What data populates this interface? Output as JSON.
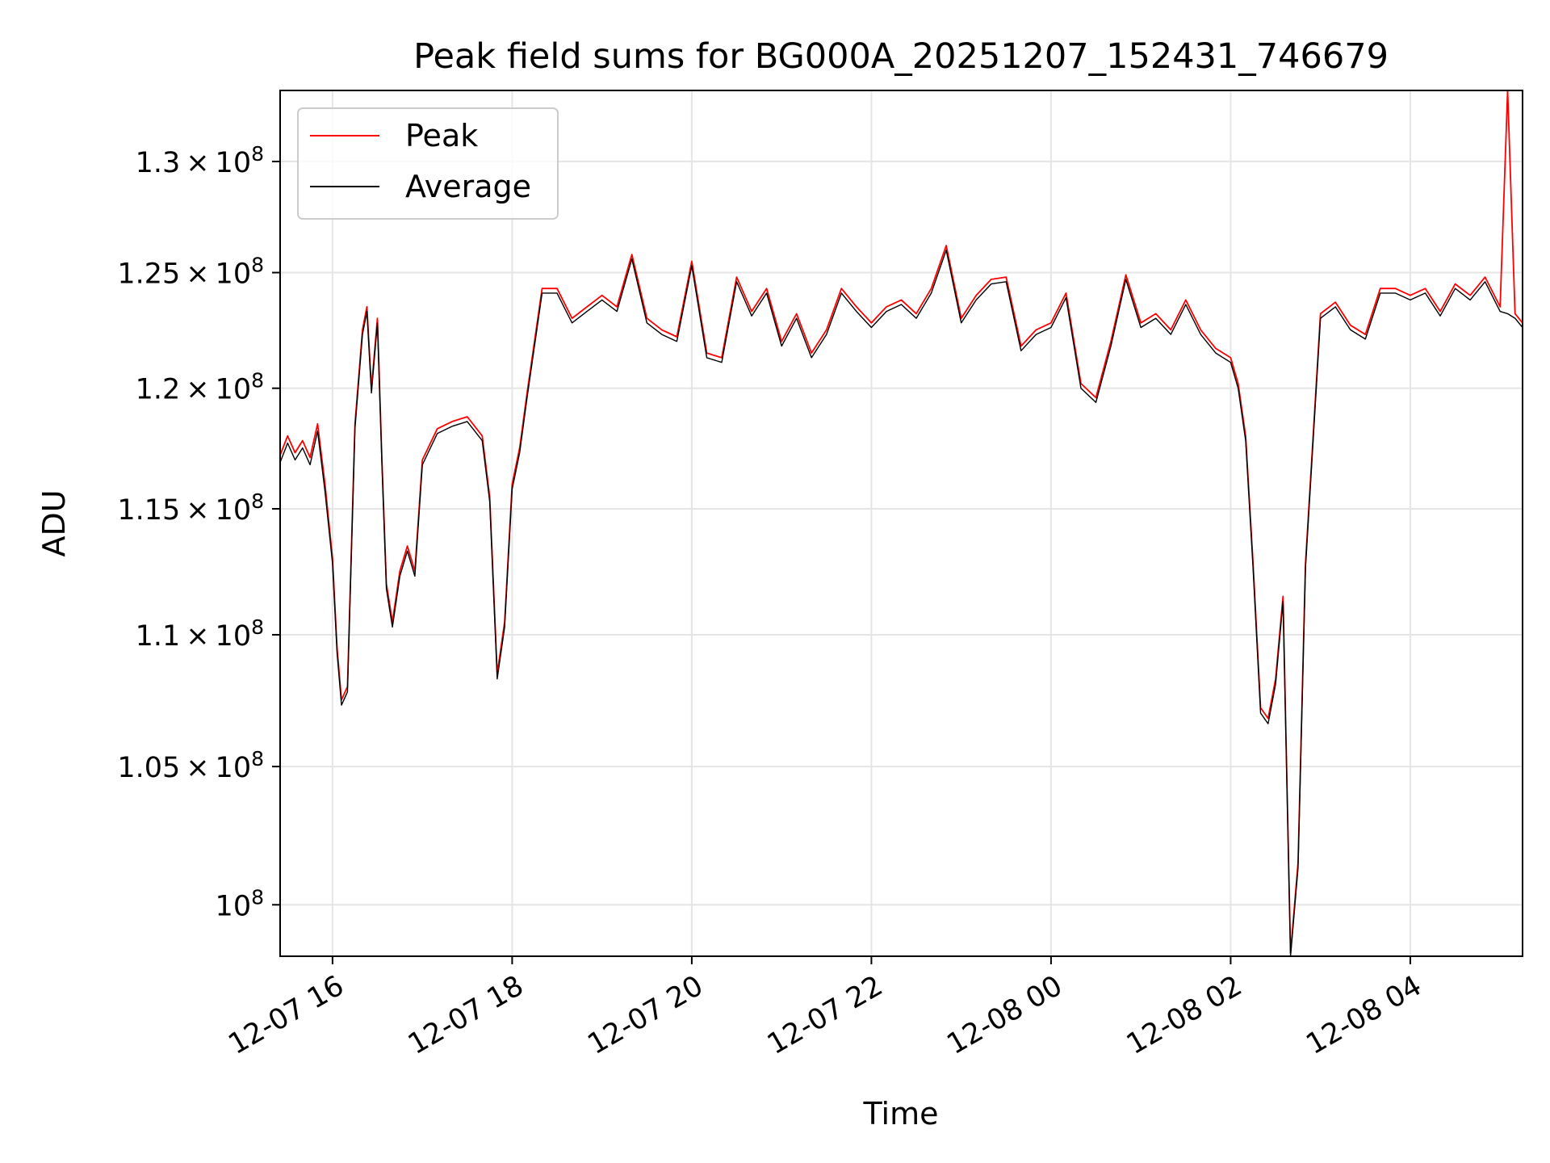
{
  "chart_data": {
    "type": "line",
    "title": "Peak field sums for BG000A_20251207_152431_746679",
    "xlabel": "Time",
    "ylabel": "ADU",
    "y_scale": "log",
    "grid": true,
    "legend_position": "upper-left",
    "xlim": [
      "2025-12-07 15:25",
      "2025-12-08 05:15"
    ],
    "ylim": [
      98200000,
      133300000
    ],
    "x_ticks": [
      {
        "value": "2025-12-07 16:00",
        "label": "12-07 16"
      },
      {
        "value": "2025-12-07 18:00",
        "label": "12-07 18"
      },
      {
        "value": "2025-12-07 20:00",
        "label": "12-07 20"
      },
      {
        "value": "2025-12-07 22:00",
        "label": "12-07 22"
      },
      {
        "value": "2025-12-08 00:00",
        "label": "12-08 00"
      },
      {
        "value": "2025-12-08 02:00",
        "label": "12-08 02"
      },
      {
        "value": "2025-12-08 04:00",
        "label": "12-08 04"
      }
    ],
    "y_ticks": [
      {
        "value": 100000000,
        "mantissa": "",
        "exp": "8"
      },
      {
        "value": 105000000,
        "mantissa": "1.05",
        "exp": "8"
      },
      {
        "value": 110000000,
        "mantissa": "1.1",
        "exp": "8"
      },
      {
        "value": 115000000,
        "mantissa": "1.15",
        "exp": "8"
      },
      {
        "value": 120000000,
        "mantissa": "1.2",
        "exp": "8"
      },
      {
        "value": 125000000,
        "mantissa": "1.25",
        "exp": "8"
      },
      {
        "value": 130000000,
        "mantissa": "1.3",
        "exp": "8"
      }
    ],
    "x": [
      "2025-12-07 15:25",
      "2025-12-07 15:30",
      "2025-12-07 15:35",
      "2025-12-07 15:40",
      "2025-12-07 15:45",
      "2025-12-07 15:50",
      "2025-12-07 15:55",
      "2025-12-07 16:00",
      "2025-12-07 16:03",
      "2025-12-07 16:06",
      "2025-12-07 16:10",
      "2025-12-07 16:15",
      "2025-12-07 16:20",
      "2025-12-07 16:23",
      "2025-12-07 16:26",
      "2025-12-07 16:30",
      "2025-12-07 16:33",
      "2025-12-07 16:36",
      "2025-12-07 16:40",
      "2025-12-07 16:45",
      "2025-12-07 16:50",
      "2025-12-07 16:55",
      "2025-12-07 17:00",
      "2025-12-07 17:10",
      "2025-12-07 17:20",
      "2025-12-07 17:30",
      "2025-12-07 17:40",
      "2025-12-07 17:45",
      "2025-12-07 17:50",
      "2025-12-07 17:55",
      "2025-12-07 18:00",
      "2025-12-07 18:05",
      "2025-12-07 18:10",
      "2025-12-07 18:20",
      "2025-12-07 18:30",
      "2025-12-07 18:40",
      "2025-12-07 18:50",
      "2025-12-07 19:00",
      "2025-12-07 19:10",
      "2025-12-07 19:20",
      "2025-12-07 19:30",
      "2025-12-07 19:40",
      "2025-12-07 19:50",
      "2025-12-07 20:00",
      "2025-12-07 20:10",
      "2025-12-07 20:20",
      "2025-12-07 20:30",
      "2025-12-07 20:40",
      "2025-12-07 20:50",
      "2025-12-07 21:00",
      "2025-12-07 21:10",
      "2025-12-07 21:20",
      "2025-12-07 21:30",
      "2025-12-07 21:40",
      "2025-12-07 21:50",
      "2025-12-07 22:00",
      "2025-12-07 22:10",
      "2025-12-07 22:20",
      "2025-12-07 22:30",
      "2025-12-07 22:40",
      "2025-12-07 22:50",
      "2025-12-07 23:00",
      "2025-12-07 23:10",
      "2025-12-07 23:20",
      "2025-12-07 23:30",
      "2025-12-07 23:40",
      "2025-12-07 23:50",
      "2025-12-08 00:00",
      "2025-12-08 00:10",
      "2025-12-08 00:20",
      "2025-12-08 00:30",
      "2025-12-08 00:40",
      "2025-12-08 00:50",
      "2025-12-08 01:00",
      "2025-12-08 01:10",
      "2025-12-08 01:20",
      "2025-12-08 01:30",
      "2025-12-08 01:40",
      "2025-12-08 01:50",
      "2025-12-08 02:00",
      "2025-12-08 02:05",
      "2025-12-08 02:10",
      "2025-12-08 02:15",
      "2025-12-08 02:20",
      "2025-12-08 02:25",
      "2025-12-08 02:30",
      "2025-12-08 02:35",
      "2025-12-08 02:40",
      "2025-12-08 02:45",
      "2025-12-08 02:50",
      "2025-12-08 03:00",
      "2025-12-08 03:10",
      "2025-12-08 03:20",
      "2025-12-08 03:30",
      "2025-12-08 03:40",
      "2025-12-08 03:50",
      "2025-12-08 04:00",
      "2025-12-08 04:10",
      "2025-12-08 04:20",
      "2025-12-08 04:30",
      "2025-12-08 04:40",
      "2025-12-08 04:50",
      "2025-12-08 05:00",
      "2025-12-08 05:05",
      "2025-12-08 05:10",
      "2025-12-08 05:15"
    ],
    "series": [
      {
        "name": "Peak",
        "color": "#ff0000",
        "values": [
          117200000,
          118000000,
          117300000,
          117800000,
          117100000,
          118500000,
          116000000,
          113000000,
          109500000,
          107500000,
          108000000,
          118500000,
          122500000,
          123500000,
          120000000,
          123000000,
          117000000,
          112000000,
          110500000,
          112500000,
          113500000,
          112500000,
          117000000,
          118300000,
          118600000,
          118800000,
          118000000,
          115500000,
          108500000,
          110500000,
          116000000,
          117500000,
          119800000,
          124300000,
          124300000,
          123000000,
          123500000,
          124000000,
          123500000,
          125800000,
          123000000,
          122500000,
          122200000,
          125500000,
          121500000,
          121300000,
          124800000,
          123300000,
          124300000,
          122000000,
          123200000,
          121500000,
          122500000,
          124300000,
          123500000,
          122800000,
          123500000,
          123800000,
          123200000,
          124300000,
          126200000,
          123000000,
          124000000,
          124700000,
          124800000,
          121800000,
          122500000,
          122800000,
          124100000,
          120200000,
          119600000,
          122000000,
          124900000,
          122800000,
          123200000,
          122500000,
          123800000,
          122500000,
          121700000,
          121300000,
          120200000,
          118000000,
          112800000,
          107200000,
          106800000,
          108300000,
          111500000,
          98300000,
          101500000,
          112800000,
          123200000,
          123700000,
          122700000,
          122300000,
          124300000,
          124300000,
          124000000,
          124300000,
          123300000,
          124500000,
          124000000,
          124800000,
          123500000,
          133300000,
          123200000,
          122800000
        ]
      },
      {
        "name": "Average",
        "color": "#000000",
        "values": [
          116900000,
          117700000,
          117000000,
          117500000,
          116800000,
          118200000,
          115700000,
          112800000,
          109300000,
          107300000,
          107800000,
          118300000,
          122300000,
          123300000,
          119800000,
          122800000,
          116800000,
          111800000,
          110300000,
          112300000,
          113300000,
          112300000,
          116800000,
          118100000,
          118400000,
          118600000,
          117800000,
          115300000,
          108300000,
          110300000,
          115800000,
          117300000,
          119600000,
          124100000,
          124100000,
          122800000,
          123300000,
          123800000,
          123300000,
          125600000,
          122800000,
          122300000,
          122000000,
          125300000,
          121300000,
          121100000,
          124600000,
          123100000,
          124100000,
          121800000,
          123000000,
          121300000,
          122300000,
          124100000,
          123300000,
          122600000,
          123300000,
          123600000,
          123000000,
          124100000,
          126000000,
          122800000,
          123800000,
          124500000,
          124600000,
          121600000,
          122300000,
          122600000,
          123900000,
          120000000,
          119400000,
          121800000,
          124700000,
          122600000,
          123000000,
          122300000,
          123600000,
          122300000,
          121500000,
          121100000,
          120000000,
          117800000,
          112600000,
          107000000,
          106600000,
          108100000,
          111300000,
          98200000,
          101300000,
          112600000,
          123000000,
          123500000,
          122500000,
          122100000,
          124100000,
          124100000,
          123800000,
          124100000,
          123100000,
          124300000,
          123800000,
          124600000,
          123300000,
          123200000,
          123000000,
          122600000
        ]
      }
    ]
  }
}
